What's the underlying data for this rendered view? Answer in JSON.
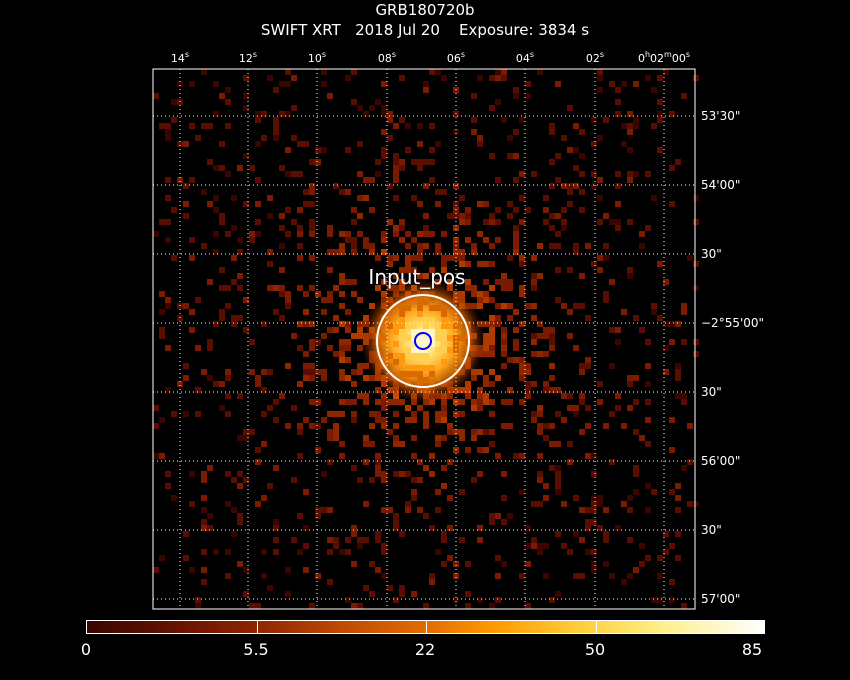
{
  "header": {
    "target": "GRB180720b",
    "subtitle": "SWIFT XRT   2018 Jul 20    Exposure: 3834 s"
  },
  "ra_ticks": [
    {
      "label": "14",
      "unit": "s"
    },
    {
      "label": "12",
      "unit": "s"
    },
    {
      "label": "10",
      "unit": "s"
    },
    {
      "label": "08",
      "unit": "s"
    },
    {
      "label": "06",
      "unit": "s"
    },
    {
      "label": "04",
      "unit": "s"
    },
    {
      "label": "02",
      "unit": "s"
    },
    {
      "label": "0h02m00s",
      "unit": ""
    }
  ],
  "dec_ticks": [
    "53'30\"",
    "54'00\"",
    "30\"",
    "−2°55'00\"",
    "30\"",
    "56'00\"",
    "30\"",
    "57'00\""
  ],
  "source": {
    "label": "Input_pos"
  },
  "colorbar": {
    "labels": [
      "0",
      "5.5",
      "22",
      "50",
      "85"
    ]
  },
  "colors": {
    "background": "#000000",
    "grid": "#ffffff",
    "source_circle": "#ffffff",
    "target_circle": "#0000ff"
  }
}
